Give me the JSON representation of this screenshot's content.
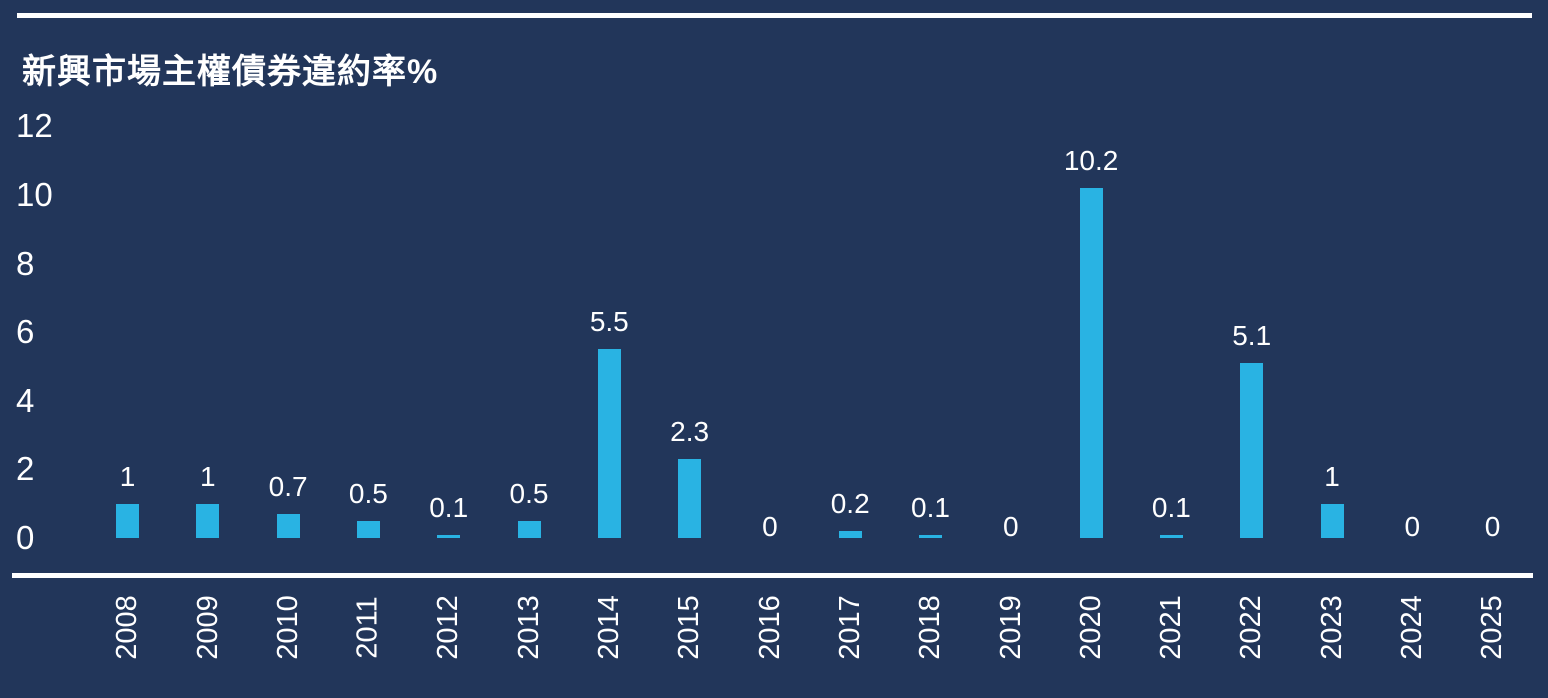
{
  "chart_data": {
    "type": "bar",
    "title": "新興市場主權債券違約率%",
    "categories": [
      "2008",
      "2009",
      "2010",
      "2011",
      "2012",
      "2013",
      "2014",
      "2015",
      "2016",
      "2017",
      "2018",
      "2019",
      "2020",
      "2021",
      "2022",
      "2023",
      "2024",
      "2025"
    ],
    "values": [
      1,
      1,
      0.7,
      0.5,
      0.1,
      0.5,
      5.5,
      2.3,
      0,
      0.2,
      0.1,
      0,
      10.2,
      0.1,
      5.1,
      1,
      0,
      0
    ],
    "value_labels": [
      "1",
      "1",
      "0.7",
      "0.5",
      "0.1",
      "0.5",
      "5.5",
      "2.3",
      "0",
      "0.2",
      "0.1",
      "0",
      "10.2",
      "0.1",
      "5.1",
      "1",
      "0",
      "0"
    ],
    "xlabel": "",
    "ylabel": "",
    "yticks": [
      0,
      2,
      4,
      6,
      8,
      10,
      12
    ],
    "ylim": [
      0,
      12
    ],
    "grid": false,
    "legend_position": "none"
  },
  "colors": {
    "background": "#22365A",
    "bar": "#29B3E3",
    "text": "#FFFFFF",
    "rule": "#FFFFFF"
  }
}
